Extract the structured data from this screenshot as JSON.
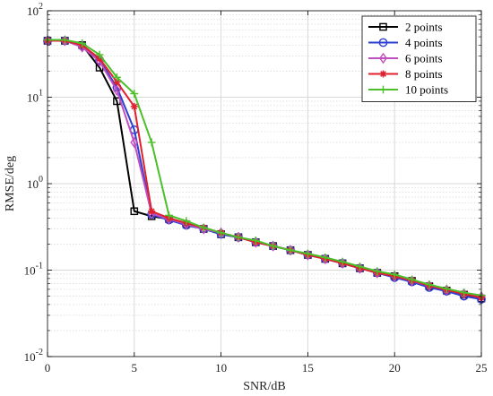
{
  "chart_data": {
    "type": "line",
    "xlabel": "SNR/dB",
    "ylabel": "RMSE/deg",
    "xlim": [
      0,
      25
    ],
    "ylim": [
      0.01,
      100
    ],
    "yscale": "log",
    "grid": true,
    "legend_position": "top-right",
    "x_ticks": [
      "0",
      "5",
      "10",
      "15",
      "20",
      "25"
    ],
    "y_ticks": [
      {
        "base": "10",
        "exp": "-2"
      },
      {
        "base": "10",
        "exp": "-1"
      },
      {
        "base": "10",
        "exp": "0"
      },
      {
        "base": "10",
        "exp": "1"
      },
      {
        "base": "10",
        "exp": "2"
      }
    ],
    "x": [
      0,
      1,
      2,
      3,
      4,
      5,
      6,
      7,
      8,
      9,
      10,
      11,
      12,
      13,
      14,
      15,
      16,
      17,
      18,
      19,
      20,
      21,
      22,
      23,
      24,
      25
    ],
    "series": [
      {
        "name": "2 points",
        "color": "#000000",
        "marker": "square",
        "values": [
          45,
          45,
          40,
          22,
          9,
          0.48,
          0.42,
          0.39,
          0.34,
          0.3,
          0.26,
          0.24,
          0.21,
          0.19,
          0.17,
          0.15,
          0.135,
          0.12,
          0.105,
          0.093,
          0.085,
          0.075,
          0.065,
          0.058,
          0.052,
          0.047
        ]
      },
      {
        "name": "4 points",
        "color": "#2b3fd0",
        "marker": "circle",
        "values": [
          45,
          45,
          39,
          27,
          13,
          4.2,
          0.44,
          0.38,
          0.33,
          0.3,
          0.26,
          0.24,
          0.21,
          0.19,
          0.17,
          0.15,
          0.135,
          0.12,
          0.105,
          0.093,
          0.082,
          0.073,
          0.063,
          0.057,
          0.05,
          0.046
        ]
      },
      {
        "name": "6 points",
        "color": "#c050c0",
        "marker": "diamond",
        "values": [
          45,
          45,
          38,
          26,
          12,
          3.0,
          0.45,
          0.39,
          0.34,
          0.3,
          0.27,
          0.24,
          0.21,
          0.19,
          0.17,
          0.15,
          0.135,
          0.12,
          0.105,
          0.093,
          0.085,
          0.075,
          0.066,
          0.059,
          0.053,
          0.049
        ]
      },
      {
        "name": "8 points",
        "color": "#e0202c",
        "marker": "asterisk",
        "values": [
          45,
          45,
          40,
          28,
          15,
          7.8,
          0.48,
          0.4,
          0.35,
          0.31,
          0.27,
          0.24,
          0.21,
          0.19,
          0.17,
          0.15,
          0.135,
          0.12,
          0.105,
          0.093,
          0.085,
          0.076,
          0.066,
          0.059,
          0.053,
          0.048
        ]
      },
      {
        "name": "10 points",
        "color": "#4cbf2a",
        "marker": "plus",
        "values": [
          46,
          46,
          42,
          31,
          17,
          11,
          3.0,
          0.43,
          0.37,
          0.31,
          0.27,
          0.24,
          0.22,
          0.19,
          0.17,
          0.155,
          0.14,
          0.125,
          0.11,
          0.097,
          0.089,
          0.078,
          0.068,
          0.061,
          0.055,
          0.051
        ]
      }
    ]
  }
}
